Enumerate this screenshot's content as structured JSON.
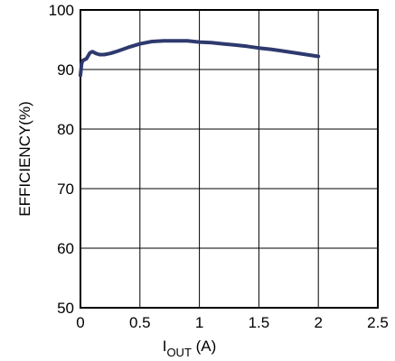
{
  "chart_data": {
    "type": "line",
    "title": "",
    "xlabel": {
      "main": "I",
      "subscript": "OUT",
      "unit": " (A)"
    },
    "ylabel": "EFFICIENCY(%)",
    "xlim": [
      0,
      2.5
    ],
    "ylim": [
      50,
      100
    ],
    "x_ticks": [
      0,
      0.5,
      1,
      1.5,
      2,
      2.5
    ],
    "x_tick_labels": [
      "0",
      "0.5",
      "1",
      "1.5",
      "2",
      "2.5"
    ],
    "y_ticks": [
      50,
      60,
      70,
      80,
      90,
      100
    ],
    "y_tick_labels": [
      "50",
      "60",
      "70",
      "80",
      "90",
      "100"
    ],
    "grid": true,
    "legend": "none",
    "series_color": "#2e3a6e",
    "series": [
      {
        "x": [
          0,
          0.01,
          0.02,
          0.05,
          0.08,
          0.1,
          0.13,
          0.16,
          0.2,
          0.25,
          0.3,
          0.4,
          0.5,
          0.6,
          0.7,
          0.8,
          0.9,
          1.0,
          1.1,
          1.2,
          1.3,
          1.4,
          1.5,
          1.6,
          1.7,
          1.8,
          1.9,
          2.0
        ],
        "y": [
          89.0,
          91.0,
          91.5,
          91.8,
          92.8,
          93.0,
          92.7,
          92.5,
          92.5,
          92.7,
          93.0,
          93.7,
          94.3,
          94.7,
          94.8,
          94.8,
          94.8,
          94.6,
          94.5,
          94.3,
          94.1,
          93.9,
          93.6,
          93.4,
          93.1,
          92.8,
          92.5,
          92.2
        ]
      }
    ]
  }
}
